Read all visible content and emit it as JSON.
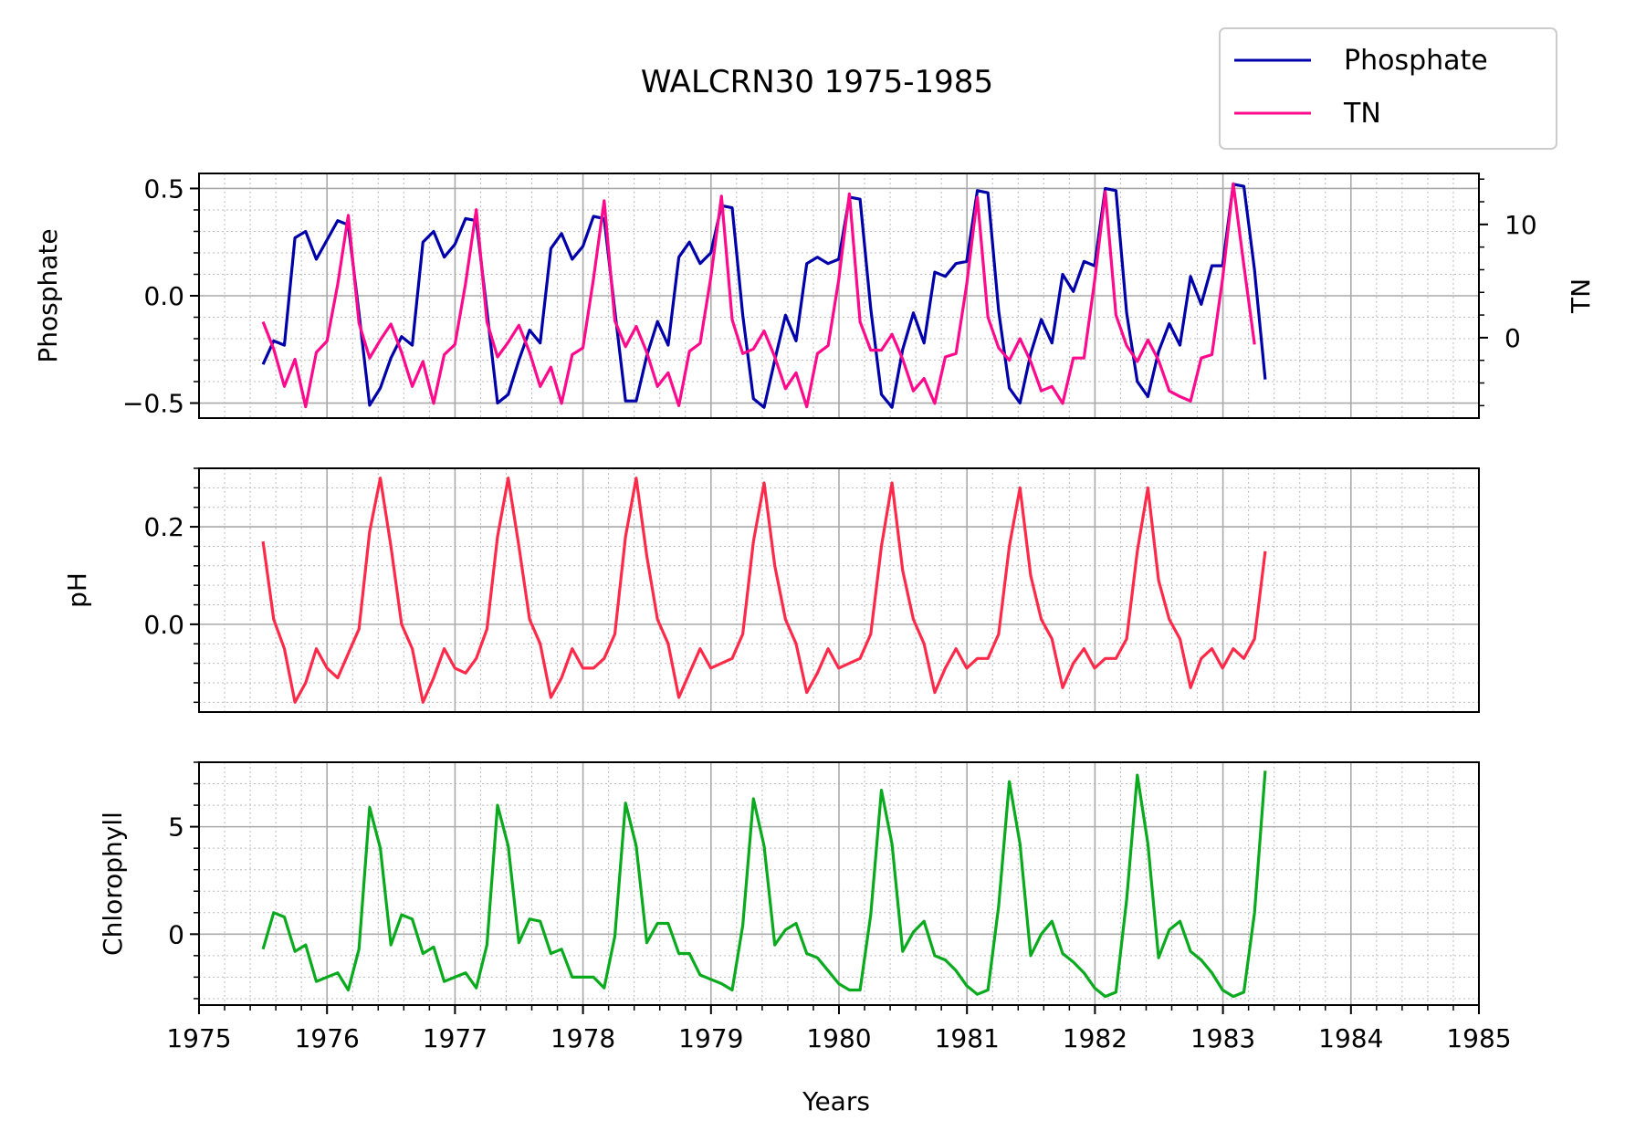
{
  "chart_data": {
    "title": "WALCRN30 1975-1985",
    "type": "line",
    "xlabel": "Years",
    "xlim": [
      1975,
      1985
    ],
    "xticks": [
      "1975",
      "1976",
      "1977",
      "1978",
      "1979",
      "1980",
      "1981",
      "1982",
      "1983",
      "1984",
      "1985"
    ],
    "grid": true,
    "legend": {
      "placement": "top-right",
      "entries": [
        {
          "name": "Phosphate",
          "color": "#0000aa"
        },
        {
          "name": "TN",
          "color": "#ff0a8c"
        }
      ]
    },
    "x_start": 1975.5,
    "x_step": 0.0833,
    "panels": [
      {
        "ylabel": "Phosphate",
        "ylim": [
          -0.57,
          0.57
        ],
        "yticks": [
          {
            "value": 0.5,
            "label": "0.5"
          },
          {
            "value": 0.0,
            "label": "0.0"
          },
          {
            "value": -0.5,
            "label": "−0.5"
          }
        ],
        "series": [
          {
            "name": "Phosphate",
            "color": "#0000aa",
            "values": [
              -0.32,
              -0.21,
              -0.23,
              0.27,
              0.3,
              0.17,
              0.26,
              0.35,
              0.33,
              -0.08,
              -0.51,
              -0.43,
              -0.29,
              -0.19,
              -0.23,
              0.25,
              0.3,
              0.18,
              0.24,
              0.36,
              0.35,
              -0.07,
              -0.5,
              -0.46,
              -0.3,
              -0.16,
              -0.22,
              0.22,
              0.29,
              0.17,
              0.23,
              0.37,
              0.36,
              -0.07,
              -0.49,
              -0.49,
              -0.28,
              -0.12,
              -0.23,
              0.18,
              0.25,
              0.15,
              0.2,
              0.42,
              0.41,
              -0.09,
              -0.48,
              -0.52,
              -0.3,
              -0.09,
              -0.21,
              0.15,
              0.18,
              0.15,
              0.17,
              0.46,
              0.45,
              -0.06,
              -0.46,
              -0.52,
              -0.25,
              -0.08,
              -0.22,
              0.11,
              0.09,
              0.15,
              0.16,
              0.49,
              0.48,
              -0.07,
              -0.43,
              -0.5,
              -0.27,
              -0.11,
              -0.22,
              0.1,
              0.02,
              0.16,
              0.14,
              0.5,
              0.49,
              -0.08,
              -0.4,
              -0.47,
              -0.26,
              -0.13,
              -0.23,
              0.09,
              -0.04,
              0.14,
              0.14,
              0.52,
              0.51,
              0.12,
              -0.39
            ]
          },
          {
            "name": "TN",
            "color": "#ff0a8c",
            "axis": "right",
            "values": [
              1.4,
              -1.0,
              -4.3,
              -1.9,
              -6.1,
              -1.3,
              -0.3,
              4.7,
              10.8,
              1.3,
              -1.8,
              -0.2,
              1.2,
              -1.3,
              -4.3,
              -2.1,
              -5.8,
              -1.5,
              -0.6,
              4.8,
              11.3,
              1.4,
              -1.7,
              -0.4,
              1.1,
              -1.3,
              -4.3,
              -2.6,
              -5.8,
              -1.5,
              -0.9,
              5.2,
              12.1,
              1.5,
              -0.8,
              1.0,
              -1.3,
              -4.3,
              -3.1,
              -6.0,
              -1.2,
              -0.5,
              5.3,
              12.5,
              1.6,
              -1.4,
              -1.0,
              0.6,
              -1.7,
              -4.5,
              -3.1,
              -6.1,
              -1.4,
              -0.7,
              5.1,
              12.7,
              1.4,
              -1.1,
              -1.1,
              0.3,
              -1.9,
              -4.7,
              -3.6,
              -5.8,
              -1.7,
              -1.4,
              4.7,
              12.4,
              1.8,
              -0.9,
              -2.0,
              -0.1,
              -2.1,
              -4.7,
              -4.3,
              -5.8,
              -1.8,
              -1.8,
              5.0,
              12.9,
              2.0,
              -0.7,
              -2.1,
              -0.2,
              -2.0,
              -4.7,
              -5.2,
              -5.6,
              -1.8,
              -1.5,
              5.2,
              13.6,
              6.4,
              -0.6
            ]
          }
        ],
        "right_axis": {
          "ylabel": "TN",
          "ylim": [
            -7.1,
            14.5
          ],
          "yticks": [
            {
              "value": 10,
              "label": "10"
            },
            {
              "value": 0,
              "label": "0"
            }
          ]
        }
      },
      {
        "ylabel": "pH",
        "ylim": [
          -0.18,
          0.32
        ],
        "yticks": [
          {
            "value": 0.2,
            "label": "0.2"
          },
          {
            "value": 0.0,
            "label": "0.0"
          }
        ],
        "series": [
          {
            "name": "pH",
            "color": "#ff2a4a",
            "values": [
              0.17,
              0.01,
              -0.05,
              -0.16,
              -0.12,
              -0.05,
              -0.09,
              -0.11,
              -0.06,
              -0.01,
              0.19,
              0.3,
              0.16,
              0.0,
              -0.05,
              -0.16,
              -0.11,
              -0.05,
              -0.09,
              -0.1,
              -0.07,
              -0.01,
              0.18,
              0.3,
              0.16,
              0.01,
              -0.04,
              -0.15,
              -0.11,
              -0.05,
              -0.09,
              -0.09,
              -0.07,
              -0.02,
              0.18,
              0.3,
              0.14,
              0.01,
              -0.04,
              -0.15,
              -0.1,
              -0.05,
              -0.09,
              -0.08,
              -0.07,
              -0.02,
              0.17,
              0.29,
              0.12,
              0.01,
              -0.04,
              -0.14,
              -0.1,
              -0.05,
              -0.09,
              -0.08,
              -0.07,
              -0.02,
              0.16,
              0.29,
              0.11,
              0.01,
              -0.04,
              -0.14,
              -0.09,
              -0.05,
              -0.09,
              -0.07,
              -0.07,
              -0.02,
              0.16,
              0.28,
              0.1,
              0.01,
              -0.03,
              -0.13,
              -0.08,
              -0.05,
              -0.09,
              -0.07,
              -0.07,
              -0.03,
              0.15,
              0.28,
              0.09,
              0.01,
              -0.03,
              -0.13,
              -0.07,
              -0.05,
              -0.09,
              -0.05,
              -0.07,
              -0.03,
              0.15
            ]
          }
        ]
      },
      {
        "ylabel": "Chlorophyll",
        "ylim": [
          -3.3,
          8.0
        ],
        "yticks": [
          {
            "value": 5,
            "label": "5"
          },
          {
            "value": 0,
            "label": "0"
          }
        ],
        "series": [
          {
            "name": "Chlorophyll",
            "color": "#0aaa1e",
            "values": [
              -0.7,
              1.0,
              0.8,
              -0.8,
              -0.5,
              -2.2,
              -2.0,
              -1.8,
              -2.6,
              -0.7,
              5.9,
              4.0,
              -0.5,
              0.9,
              0.7,
              -0.9,
              -0.6,
              -2.2,
              -2.0,
              -1.8,
              -2.5,
              -0.5,
              6.0,
              4.1,
              -0.4,
              0.7,
              0.6,
              -0.9,
              -0.7,
              -2.0,
              -2.0,
              -2.0,
              -2.5,
              -0.1,
              6.1,
              4.1,
              -0.4,
              0.5,
              0.5,
              -0.9,
              -0.9,
              -1.9,
              -2.1,
              -2.3,
              -2.6,
              0.4,
              6.3,
              4.1,
              -0.5,
              0.2,
              0.5,
              -0.9,
              -1.1,
              -1.7,
              -2.3,
              -2.6,
              -2.6,
              0.9,
              6.7,
              4.2,
              -0.8,
              0.1,
              0.6,
              -1.0,
              -1.2,
              -1.7,
              -2.4,
              -2.8,
              -2.6,
              1.3,
              7.1,
              4.2,
              -1.0,
              0.0,
              0.6,
              -0.9,
              -1.3,
              -1.8,
              -2.5,
              -2.9,
              -2.7,
              1.6,
              7.4,
              4.2,
              -1.1,
              0.2,
              0.6,
              -0.8,
              -1.2,
              -1.8,
              -2.6,
              -2.9,
              -2.7,
              1.0,
              7.6
            ]
          }
        ]
      }
    ]
  }
}
